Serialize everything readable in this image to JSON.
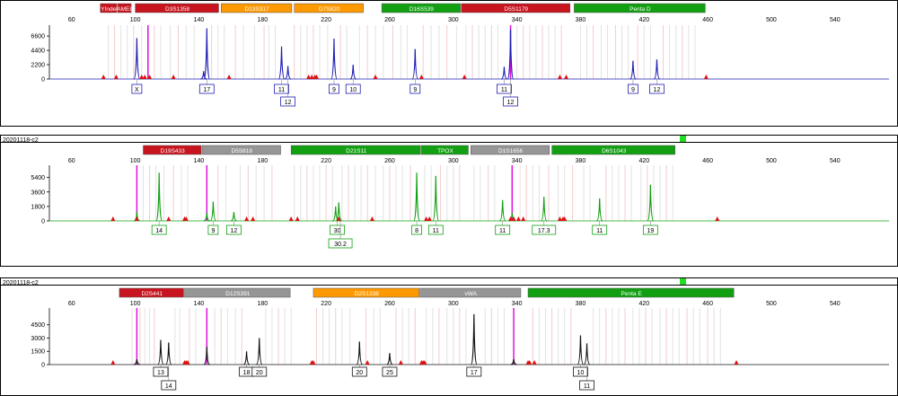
{
  "chart_data": [
    {
      "type": "line",
      "title": "",
      "color": "#1e1eb4",
      "x_ticks": [
        60,
        100,
        140,
        180,
        220,
        260,
        300,
        340,
        380,
        420,
        460,
        500,
        540
      ],
      "xlim": [
        46,
        574
      ],
      "y_ticks": [
        0,
        2200,
        4400,
        6600
      ],
      "ylim": [
        0,
        8000
      ],
      "loci": [
        {
          "name": "YIndel",
          "start": 78,
          "end": 89,
          "color": "#c8141e"
        },
        {
          "name": "AMEL",
          "start": 89,
          "end": 98,
          "color": "#c8141e"
        },
        {
          "name": "D3S1358",
          "start": 100,
          "end": 153,
          "color": "#c8141e"
        },
        {
          "name": "D13S317",
          "start": 154,
          "end": 199,
          "color": "#ff9900"
        },
        {
          "name": "D7S820",
          "start": 200,
          "end": 244,
          "color": "#ff9900"
        },
        {
          "name": "D16S539",
          "start": 255,
          "end": 305,
          "color": "#12a012"
        },
        {
          "name": "D5S1179",
          "start": 305,
          "end": 374,
          "color": "#c8141e"
        },
        {
          "name": "Penta D",
          "start": 376,
          "end": 459,
          "color": "#12a012"
        }
      ],
      "peaks": [
        {
          "x": 101,
          "height": 6300
        },
        {
          "x": 143,
          "height": 1200
        },
        {
          "x": 145,
          "height": 7800
        },
        {
          "x": 192,
          "height": 5000
        },
        {
          "x": 196,
          "height": 2000
        },
        {
          "x": 225,
          "height": 6200
        },
        {
          "x": 237,
          "height": 2200
        },
        {
          "x": 276,
          "height": 4600
        },
        {
          "x": 332,
          "height": 1900
        },
        {
          "x": 336,
          "height": 7600
        },
        {
          "x": 413,
          "height": 2800
        },
        {
          "x": 428,
          "height": 3000
        }
      ],
      "ladder_lines": [
        83,
        87,
        91,
        95,
        99,
        104,
        108,
        112,
        116,
        122,
        127,
        132,
        137,
        148,
        152,
        156,
        163,
        168,
        175,
        181,
        184,
        188,
        200,
        204,
        208,
        212,
        216,
        221,
        229,
        233,
        241,
        246,
        251,
        256,
        262,
        267,
        271,
        281,
        286,
        291,
        296,
        302,
        308,
        312,
        316,
        320,
        324,
        328,
        340,
        344,
        348,
        352,
        356,
        360,
        364,
        368,
        380,
        384,
        388,
        393,
        397,
        402,
        406,
        410,
        416,
        420,
        424,
        432,
        436,
        440,
        444,
        448,
        452
      ],
      "magenta_lines": [
        108,
        336
      ],
      "red_markers": [
        80,
        88,
        104,
        106,
        109,
        124,
        159,
        209,
        211,
        213,
        214,
        251,
        280,
        307,
        367,
        371,
        459
      ],
      "allele_calls": [
        {
          "x": 101,
          "label": "X",
          "row": 0
        },
        {
          "x": 145,
          "label": "17",
          "row": 0
        },
        {
          "x": 192,
          "label": "11",
          "row": 0
        },
        {
          "x": 196,
          "label": "12",
          "row": 1
        },
        {
          "x": 225,
          "label": "9",
          "row": 0
        },
        {
          "x": 237,
          "label": "10",
          "row": 0
        },
        {
          "x": 276,
          "label": "9",
          "row": 0
        },
        {
          "x": 332,
          "label": "11",
          "row": 0
        },
        {
          "x": 336,
          "label": "12",
          "row": 1
        },
        {
          "x": 413,
          "label": "9",
          "row": 0
        },
        {
          "x": 428,
          "label": "12",
          "row": 0
        }
      ]
    },
    {
      "type": "line",
      "title": "20201118-c2",
      "color": "#12a012",
      "x_ticks": [
        60,
        100,
        140,
        180,
        220,
        260,
        300,
        340,
        380,
        420,
        460,
        500,
        540
      ],
      "xlim": [
        46,
        574
      ],
      "y_ticks": [
        0,
        1800,
        3600,
        5400
      ],
      "ylim": [
        0,
        6700
      ],
      "loci": [
        {
          "name": "D19S433",
          "start": 105,
          "end": 142,
          "color": "#c8141e"
        },
        {
          "name": "D5S818",
          "start": 142,
          "end": 192,
          "color": "#969696"
        },
        {
          "name": "D21S11",
          "start": 198,
          "end": 280,
          "color": "#12a012"
        },
        {
          "name": "TPOX",
          "start": 280,
          "end": 310,
          "color": "#12a012"
        },
        {
          "name": "D1S1656",
          "start": 311,
          "end": 361,
          "color": "#969696"
        },
        {
          "name": "D6S1043",
          "start": 362,
          "end": 440,
          "color": "#12a012"
        }
      ],
      "peaks": [
        {
          "x": 101,
          "height": 1100
        },
        {
          "x": 115,
          "height": 6000
        },
        {
          "x": 145,
          "height": 1000
        },
        {
          "x": 149,
          "height": 2400
        },
        {
          "x": 162,
          "height": 1100
        },
        {
          "x": 226,
          "height": 1800
        },
        {
          "x": 228,
          "height": 2300
        },
        {
          "x": 277,
          "height": 6000
        },
        {
          "x": 289,
          "height": 5600
        },
        {
          "x": 331,
          "height": 2600
        },
        {
          "x": 337,
          "height": 1000
        },
        {
          "x": 357,
          "height": 3000
        },
        {
          "x": 392,
          "height": 2800
        },
        {
          "x": 424,
          "height": 4500
        }
      ],
      "ladder_lines": [
        105,
        109,
        113,
        118,
        124,
        129,
        133,
        152,
        157,
        166,
        171,
        176,
        181,
        186,
        200,
        204,
        208,
        212,
        216,
        220,
        224,
        230,
        234,
        238,
        242,
        246,
        251,
        256,
        260,
        264,
        268,
        273,
        282,
        286,
        292,
        296,
        300,
        304,
        313,
        317,
        322,
        326,
        342,
        346,
        350,
        354,
        360,
        366,
        370,
        375,
        382,
        386,
        396,
        400,
        404,
        408,
        412,
        418,
        422,
        426,
        430,
        434,
        438
      ],
      "magenta_lines": [
        101,
        145,
        337
      ],
      "red_markers": [
        86,
        101,
        121,
        131,
        132,
        170,
        174,
        198,
        202,
        228,
        249,
        283,
        285,
        336,
        338,
        341,
        344,
        367,
        369,
        370,
        466
      ],
      "allele_calls": [
        {
          "x": 115,
          "label": "14",
          "row": 0
        },
        {
          "x": 149,
          "label": "9",
          "row": 0
        },
        {
          "x": 162,
          "label": "12",
          "row": 0
        },
        {
          "x": 227,
          "label": "30",
          "row": 0
        },
        {
          "x": 229,
          "label": "30.2",
          "row": 1
        },
        {
          "x": 277,
          "label": "8",
          "row": 0
        },
        {
          "x": 289,
          "label": "11",
          "row": 0
        },
        {
          "x": 331,
          "label": "11",
          "row": 0
        },
        {
          "x": 357,
          "label": "17.3",
          "row": 0
        },
        {
          "x": 392,
          "label": "11",
          "row": 0
        },
        {
          "x": 424,
          "label": "19",
          "row": 0
        }
      ]
    },
    {
      "type": "line",
      "title": "20201118-c2",
      "color": "#141414",
      "x_ticks": [
        60,
        100,
        140,
        180,
        220,
        260,
        300,
        340,
        380,
        420,
        460,
        500,
        540
      ],
      "xlim": [
        46,
        574
      ],
      "y_ticks": [
        0,
        1500,
        3000,
        4500
      ],
      "ylim": [
        0,
        6200
      ],
      "loci": [
        {
          "name": "D2S441",
          "start": 90,
          "end": 131,
          "color": "#c8141e"
        },
        {
          "name": "D12S391",
          "start": 131,
          "end": 198,
          "color": "#969696"
        },
        {
          "name": "D2S1338",
          "start": 212,
          "end": 279,
          "color": "#ff9900"
        },
        {
          "name": "vWA",
          "start": 279,
          "end": 343,
          "color": "#969696"
        },
        {
          "name": "Penta E",
          "start": 347,
          "end": 477,
          "color": "#12a012"
        }
      ],
      "peaks": [
        {
          "x": 101,
          "height": 600
        },
        {
          "x": 116,
          "height": 2800
        },
        {
          "x": 121,
          "height": 2500
        },
        {
          "x": 145,
          "height": 2000
        },
        {
          "x": 170,
          "height": 1500
        },
        {
          "x": 178,
          "height": 3000
        },
        {
          "x": 241,
          "height": 2600
        },
        {
          "x": 260,
          "height": 1300
        },
        {
          "x": 313,
          "height": 5700
        },
        {
          "x": 338,
          "height": 600
        },
        {
          "x": 380,
          "height": 3300
        },
        {
          "x": 384,
          "height": 2400
        }
      ],
      "ladder_lines": [
        98,
        103,
        106,
        109,
        112,
        125,
        128,
        134,
        138,
        150,
        154,
        158,
        163,
        167,
        182,
        186,
        190,
        194,
        198,
        214,
        218,
        222,
        226,
        230,
        235,
        245,
        250,
        254,
        264,
        268,
        272,
        276,
        283,
        287,
        291,
        296,
        300,
        304,
        308,
        320,
        324,
        328,
        332,
        350,
        354,
        358,
        362,
        366,
        370,
        374,
        388,
        392,
        396,
        400,
        404,
        408,
        413,
        417,
        421,
        425,
        430,
        434,
        438,
        442,
        447,
        451,
        455,
        460,
        464,
        468
      ],
      "magenta_lines": [
        101,
        145,
        338
      ],
      "red_markers": [
        86,
        131,
        132,
        133,
        211,
        212,
        246,
        267,
        280,
        281,
        282,
        347,
        348,
        351,
        478
      ],
      "allele_calls": [
        {
          "x": 116,
          "label": "13",
          "row": 0
        },
        {
          "x": 121,
          "label": "14",
          "row": 1
        },
        {
          "x": 170,
          "label": "18",
          "row": 0
        },
        {
          "x": 178,
          "label": "20",
          "row": 0
        },
        {
          "x": 241,
          "label": "20",
          "row": 0
        },
        {
          "x": 260,
          "label": "25",
          "row": 0
        },
        {
          "x": 313,
          "label": "17",
          "row": 0
        },
        {
          "x": 380,
          "label": "10",
          "row": 0
        },
        {
          "x": 384,
          "label": "11",
          "row": 1
        }
      ]
    }
  ]
}
